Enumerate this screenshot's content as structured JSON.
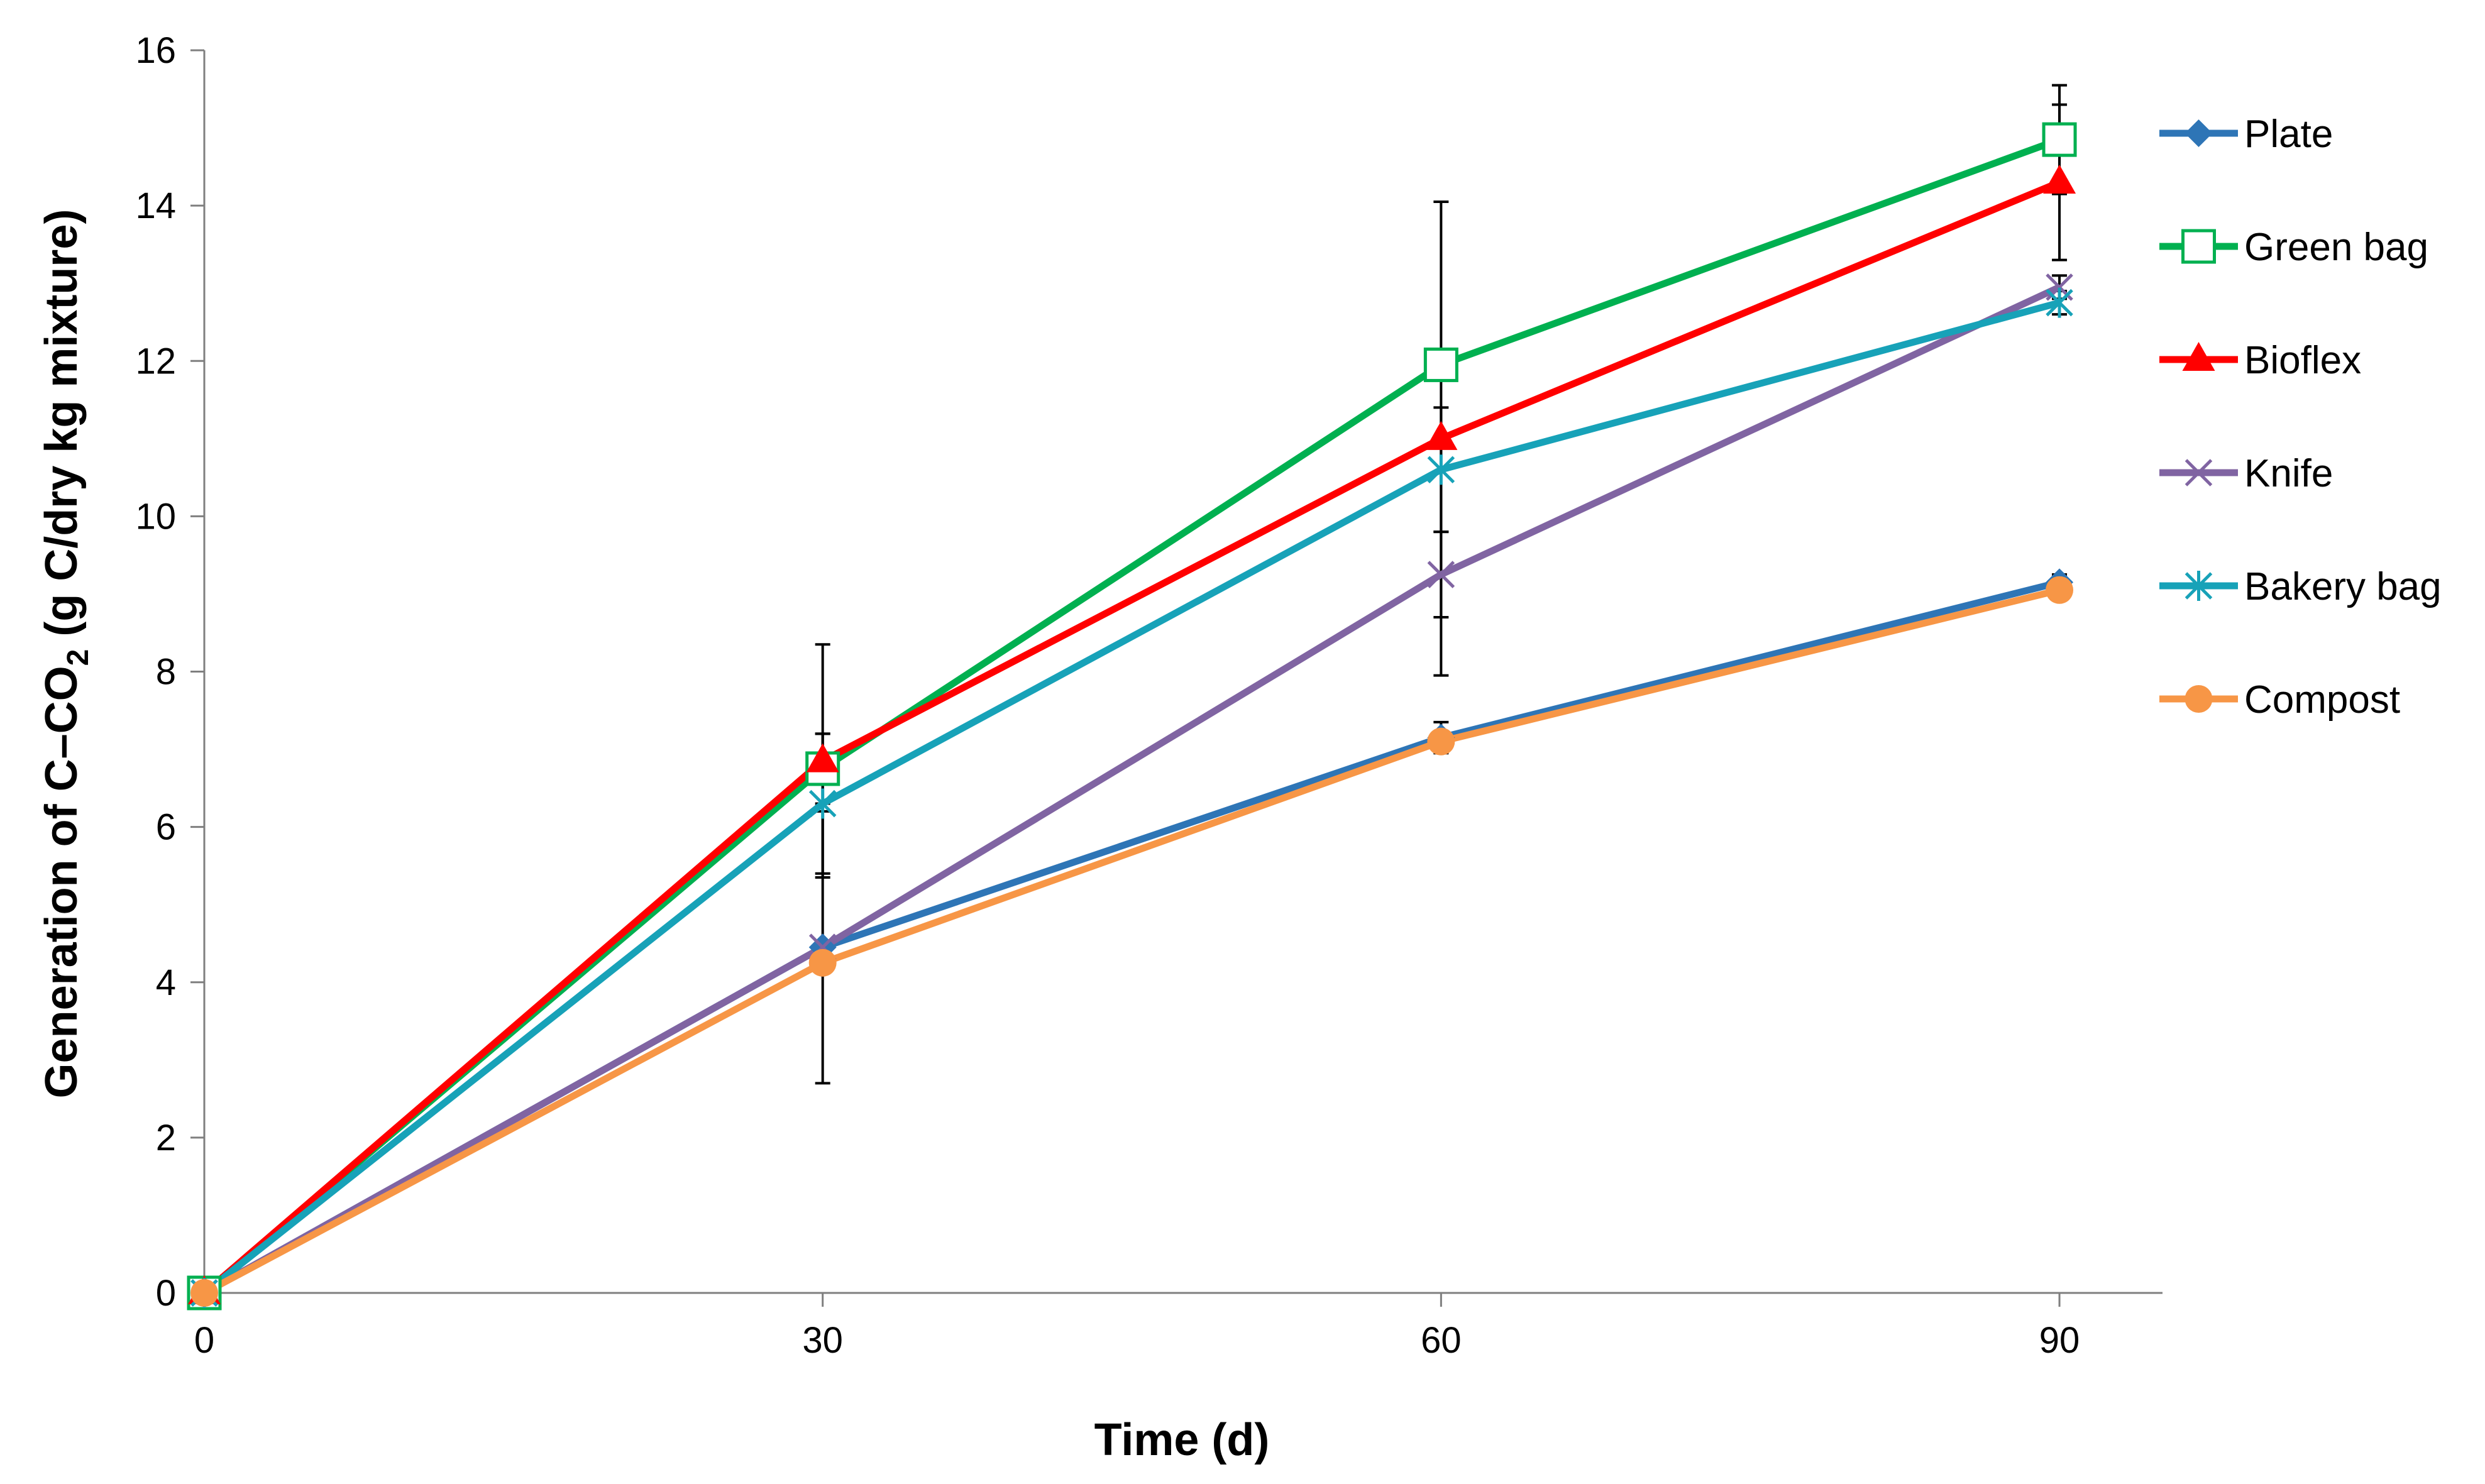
{
  "chart_data": {
    "type": "line",
    "title": "",
    "xlabel": "Time (d)",
    "ylabel_parts": [
      "Generation of C–CO",
      "2",
      " (g C/dry kg mixture)"
    ],
    "x": [
      0,
      30,
      60,
      90
    ],
    "x_ticks": [
      0,
      30,
      60,
      90
    ],
    "xlim": [
      0,
      95
    ],
    "ylim": [
      0,
      16
    ],
    "y_ticks": [
      0,
      2,
      4,
      6,
      8,
      10,
      12,
      14,
      16
    ],
    "grid": false,
    "legend_position": "right",
    "series": [
      {
        "name": "Plate",
        "marker": "diamond",
        "color": "#2e75b6",
        "values": [
          0,
          4.45,
          7.15,
          9.15
        ],
        "errors": [
          0,
          0,
          0.2,
          0.1
        ]
      },
      {
        "name": "Green bag",
        "marker": "square-open",
        "color": "#00b050",
        "values": [
          0,
          6.75,
          11.95,
          14.85
        ],
        "errors": [
          0,
          0.45,
          0.0,
          0.7
        ]
      },
      {
        "name": "Bioflex",
        "marker": "triangle",
        "color": "#ff0000",
        "values": [
          0,
          6.85,
          11.0,
          14.3
        ],
        "errors": [
          0,
          1.5,
          3.05,
          1.0
        ]
      },
      {
        "name": "Knife",
        "marker": "x",
        "color": "#8064a2",
        "values": [
          0,
          4.45,
          9.25,
          12.95
        ],
        "errors": [
          0,
          1.75,
          0.55,
          0.15
        ]
      },
      {
        "name": "Bakery bag",
        "marker": "asterisk",
        "color": "#17a2b8",
        "values": [
          0,
          6.3,
          10.6,
          12.75
        ],
        "errors": [
          0,
          0.9,
          0.8,
          0.15
        ]
      },
      {
        "name": "Compost",
        "marker": "circle",
        "color": "#f79646",
        "values": [
          0,
          4.25,
          7.1,
          9.05
        ],
        "errors": [
          0,
          0,
          0,
          0
        ]
      }
    ]
  }
}
